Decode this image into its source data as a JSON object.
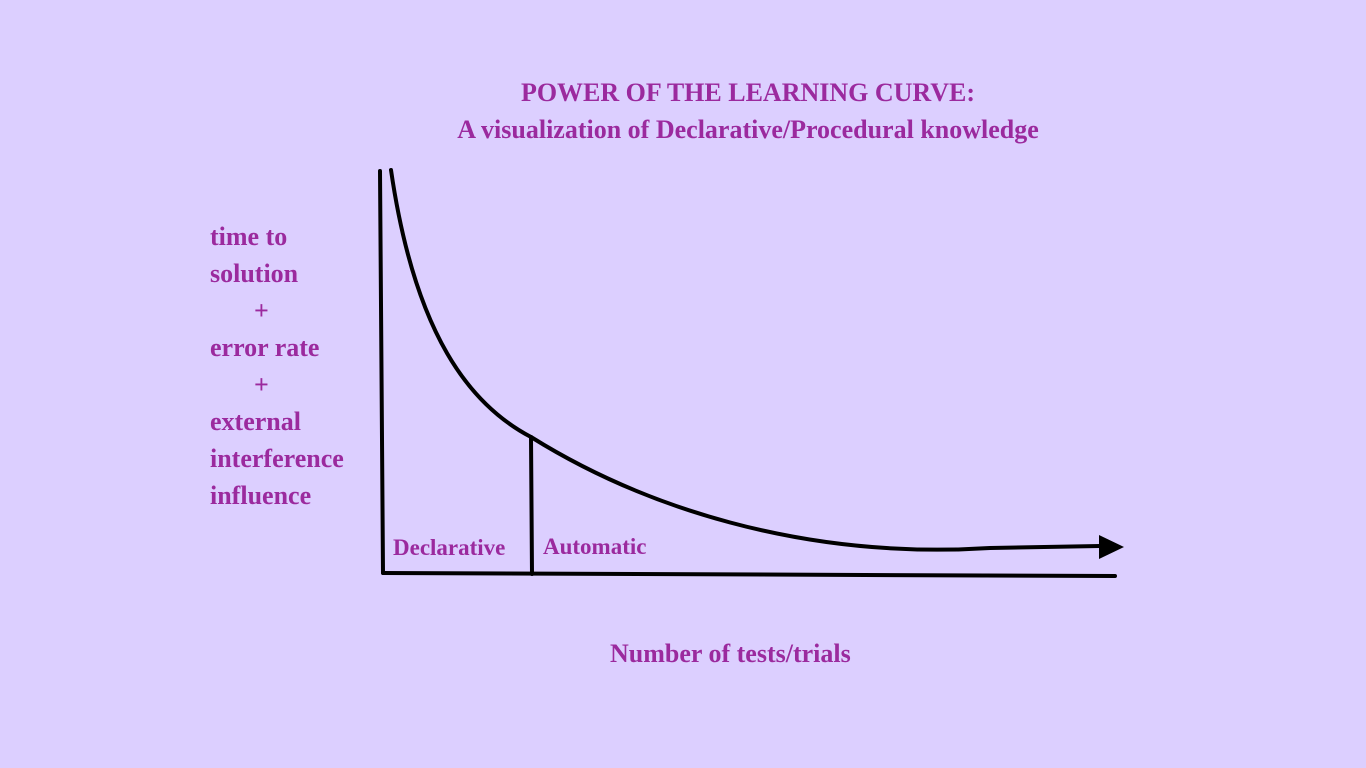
{
  "title": {
    "line1": "POWER OF THE LEARNING CURVE:",
    "line2": "A visualization of Declarative/Procedural knowledge"
  },
  "y_axis_label": {
    "line1": "time to",
    "line2": "solution",
    "plus1": "+",
    "line3": "error rate",
    "plus2": "+",
    "line4": "external",
    "line5": "interference",
    "line6": "influence"
  },
  "x_axis_label": "Number of tests/trials",
  "regions": {
    "declarative": "Declarative",
    "automatic": "Automatic"
  },
  "colors": {
    "background": "#dccfff",
    "text": "#9b2a9e",
    "lines": "#000000"
  }
}
